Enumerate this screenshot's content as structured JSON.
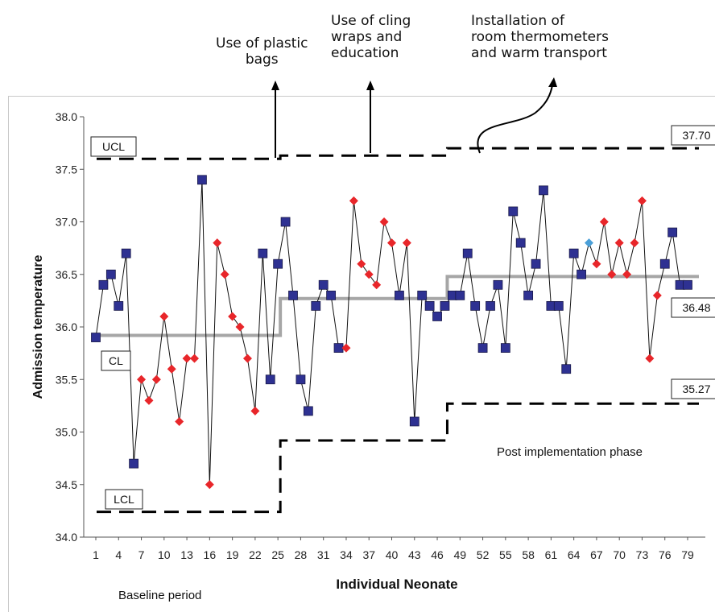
{
  "chart_data": {
    "type": "line",
    "title": "",
    "xlabel": "Individual Neonate",
    "ylabel": "Admission temperature",
    "xlim": [
      1,
      79
    ],
    "ylim": [
      34.0,
      38.0
    ],
    "x_ticks": [
      1,
      4,
      7,
      10,
      13,
      16,
      19,
      22,
      25,
      28,
      31,
      34,
      37,
      40,
      43,
      46,
      49,
      52,
      55,
      58,
      61,
      64,
      67,
      70,
      73,
      76,
      79
    ],
    "y_ticks": [
      "34.0",
      "34.5",
      "35.0",
      "35.5",
      "36.0",
      "36.5",
      "37.0",
      "37.5",
      "38.0"
    ],
    "series": [
      {
        "values": [
          35.9,
          36.4,
          36.5,
          36.2,
          36.7,
          34.7,
          35.5,
          35.3,
          35.5,
          36.1,
          35.6,
          35.1,
          35.7,
          35.7,
          37.4,
          34.5,
          36.8,
          36.5,
          36.1,
          36.0,
          35.7,
          35.2,
          36.7,
          35.5,
          36.6,
          37.0,
          36.3,
          35.5,
          35.2,
          36.2,
          36.4,
          36.3,
          35.8,
          35.8,
          37.2,
          36.6,
          36.5,
          36.4,
          37.0,
          36.8,
          36.3,
          36.8,
          35.1,
          36.3,
          36.2,
          36.1,
          36.2,
          36.3,
          36.3,
          36.7,
          36.2,
          35.8,
          36.2,
          36.4,
          35.8,
          37.1,
          36.8,
          36.3,
          36.6,
          37.3,
          36.2,
          36.2,
          35.6,
          36.7,
          36.5,
          36.8,
          36.6,
          37.0,
          36.5,
          36.8,
          36.5,
          36.8,
          37.2,
          35.7,
          36.3,
          36.6,
          36.9,
          36.4,
          36.4
        ],
        "markers": "ssssssddddddddsdddddddsssssssssssdddddddsdsssssssssssssssssssssssbdddddddddsssss"
      }
    ],
    "center_line": [
      {
        "from": 1,
        "to": 25,
        "value": 35.92
      },
      {
        "from": 26,
        "to": 47,
        "value": 36.27
      },
      {
        "from": 48,
        "to": 79,
        "value": 36.48
      }
    ],
    "ucl": [
      {
        "from": 1,
        "to": 25,
        "value": 37.6
      },
      {
        "from": 26,
        "to": 47,
        "value": 37.63
      },
      {
        "from": 48,
        "to": 79,
        "value": 37.7
      }
    ],
    "lcl": [
      {
        "from": 1,
        "to": 25,
        "value": 34.24
      },
      {
        "from": 26,
        "to": 47,
        "value": 34.92
      },
      {
        "from": 48,
        "to": 79,
        "value": 35.27
      }
    ],
    "line_labels": {
      "ucl": "UCL",
      "cl": "CL",
      "lcl": "LCL"
    },
    "value_labels": {
      "ucl": "37.70",
      "cl": "36.48",
      "lcl": "35.27"
    },
    "annotations": [
      {
        "text": "Use of plastic\nbags",
        "at": 25
      },
      {
        "text": "Use of cling\nwraps and\neducation",
        "at": 37
      },
      {
        "text": "Installation of\nroom thermometers\nand warm transport",
        "at": 51
      }
    ],
    "region_labels": {
      "baseline": "Baseline period",
      "post": "Post implementation phase"
    },
    "colors": {
      "square": "#2e3192",
      "diamond": "#e8262a",
      "blue_diamond": "#4a9fd8",
      "center_line": "#a6a6a6",
      "limit_line": "#000000"
    },
    "grid": false,
    "legend": "none"
  }
}
